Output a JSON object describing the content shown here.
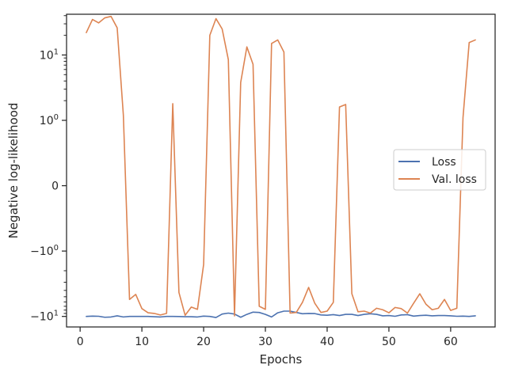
{
  "chart_data": {
    "type": "line",
    "xlabel": "Epochs",
    "ylabel": "Negative log-likelihood",
    "xscale": "linear",
    "yscale": "symlog",
    "xlim": [
      -2.2,
      67.2
    ],
    "ylim": [
      -14.5,
      42
    ],
    "grid": false,
    "legend_position": "center-right",
    "x_ticks": [
      0,
      10,
      20,
      30,
      40,
      50,
      60
    ],
    "x_tick_labels": [
      "0",
      "10",
      "20",
      "30",
      "40",
      "50",
      "60"
    ],
    "y_ticks": [
      -10,
      -1,
      0,
      1,
      10
    ],
    "y_tick_labels": [
      {
        "base": "−10",
        "exp": "1"
      },
      {
        "base": "−10",
        "exp": "0"
      },
      {
        "base": "0",
        "exp": ""
      },
      {
        "base": "10",
        "exp": "0"
      },
      {
        "base": "10",
        "exp": "1"
      }
    ],
    "x": [
      1,
      2,
      3,
      4,
      5,
      6,
      7,
      8,
      9,
      10,
      11,
      12,
      13,
      14,
      15,
      16,
      17,
      18,
      19,
      20,
      21,
      22,
      23,
      24,
      25,
      26,
      27,
      28,
      29,
      30,
      31,
      32,
      33,
      34,
      35,
      36,
      37,
      38,
      39,
      40,
      41,
      42,
      43,
      44,
      45,
      46,
      47,
      48,
      49,
      50,
      51,
      52,
      53,
      54,
      55,
      56,
      57,
      58,
      59,
      60,
      61,
      62,
      63,
      64
    ],
    "series": [
      {
        "name": "Loss",
        "color": "#4c72b0",
        "values": [
          -10,
          -9.9,
          -9.95,
          -10.3,
          -10.2,
          -9.8,
          -10.2,
          -10,
          -10,
          -10,
          -10,
          -10.1,
          -10.2,
          -10,
          -10,
          -10.05,
          -10.1,
          -10.1,
          -10.2,
          -9.9,
          -10,
          -10.4,
          -9.2,
          -8.9,
          -9.2,
          -10.3,
          -9.3,
          -8.6,
          -8.7,
          -9.3,
          -10.2,
          -8.8,
          -8.3,
          -8.3,
          -8.7,
          -9.1,
          -9.0,
          -9.05,
          -9.5,
          -9.6,
          -9.4,
          -9.7,
          -9.3,
          -9.3,
          -9.7,
          -9.3,
          -9.1,
          -9.3,
          -9.8,
          -9.7,
          -9.95,
          -9.5,
          -9.4,
          -9.9,
          -9.7,
          -9.6,
          -9.8,
          -9.7,
          -9.7,
          -9.8,
          -9.95,
          -9.9,
          -10,
          -9.8
        ]
      },
      {
        "name": "Val. loss",
        "color": "#dd8452",
        "values": [
          22,
          35,
          31,
          37,
          39,
          26,
          1.2,
          -5.5,
          -4.6,
          -7.6,
          -8.8,
          -9,
          -9.5,
          -9,
          1.8,
          -4.3,
          -9.6,
          -7.2,
          -7.8,
          -1.6,
          20,
          36,
          25,
          8.5,
          -9.8,
          3.8,
          13.3,
          7.2,
          -7,
          -7.8,
          15,
          17,
          11.1,
          -8.9,
          -8.7,
          -6.1,
          -3.6,
          -6.3,
          -8.7,
          -8.3,
          -6.1,
          1.6,
          1.75,
          -4.5,
          -8.5,
          -8.3,
          -8.9,
          -7.5,
          -7.9,
          -8.8,
          -7.3,
          -7.6,
          -8.9,
          -6.3,
          -4.5,
          -6.5,
          -7.9,
          -7.5,
          -5.5,
          -8.1,
          -7.5,
          1.1,
          15.5,
          17
        ]
      }
    ]
  }
}
